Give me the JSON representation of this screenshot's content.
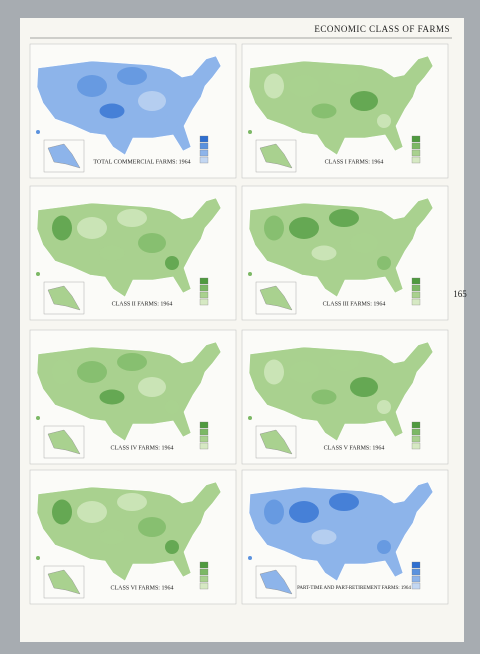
{
  "header": {
    "title": "ECONOMIC CLASS OF FARMS",
    "page_number": "165"
  },
  "maps": [
    {
      "title": "TOTAL COMMERCIAL FARMS: 1964"
    },
    {
      "title": "CLASS I FARMS: 1964"
    },
    {
      "title": "CLASS II FARMS: 1964"
    },
    {
      "title": "CLASS III FARMS: 1964"
    },
    {
      "title": "CLASS IV FARMS: 1964"
    },
    {
      "title": "CLASS V FARMS: 1964"
    },
    {
      "title": "CLASS VI FARMS: 1964"
    },
    {
      "title": "PART-TIME AND PART-RETIREMENT FARMS: 1964"
    }
  ]
}
